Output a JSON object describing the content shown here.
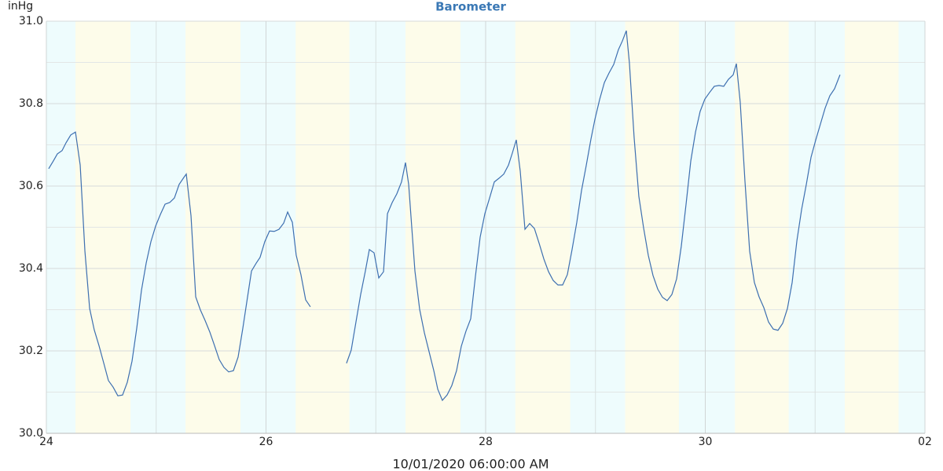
{
  "chart_data": {
    "type": "line",
    "title": "Barometer",
    "ylabel": "inHg",
    "xlabel": "10/01/2020 06:00:00 AM",
    "xlim": [
      24,
      32
    ],
    "xticks": [
      24,
      26,
      28,
      30,
      {
        "value": 32,
        "label": "02"
      }
    ],
    "x_minor_grid": [
      25,
      27,
      29,
      31
    ],
    "ylim": [
      30,
      31
    ],
    "yticks": [
      {
        "value": 30,
        "label": "30.0"
      },
      30.2,
      30.4,
      30.6,
      30.8,
      {
        "value": 31,
        "label": "31.0"
      }
    ],
    "y_minor_grid": [
      30.1,
      30.3,
      30.5,
      30.7,
      30.9
    ],
    "grid": true,
    "background": "#eefcfd",
    "band_color": "#fdfcea",
    "bands": [
      [
        24.265,
        24.766
      ],
      [
        25.267,
        25.767
      ],
      [
        26.27,
        26.76
      ],
      [
        27.27,
        27.77
      ],
      [
        28.27,
        28.77
      ],
      [
        29.27,
        29.76
      ],
      [
        30.27,
        30.76
      ],
      [
        31.27,
        31.76
      ]
    ],
    "x": [
      24.021,
      24.064,
      24.1,
      24.143,
      24.179,
      24.222,
      24.265,
      24.308,
      24.351,
      24.394,
      24.436,
      24.479,
      24.522,
      24.565,
      24.608,
      24.651,
      24.694,
      24.737,
      24.78,
      24.823,
      24.866,
      24.909,
      24.952,
      24.995,
      25.038,
      25.081,
      25.123,
      25.166,
      25.209,
      25.252,
      25.274,
      25.317,
      25.36,
      25.403,
      25.445,
      25.488,
      25.531,
      25.574,
      25.617,
      25.66,
      25.703,
      25.746,
      25.789,
      25.832,
      25.868,
      25.911,
      25.946,
      25.989,
      26.032,
      26.075,
      26.118,
      26.161,
      26.197,
      26.24,
      26.275,
      26.318,
      26.361,
      26.404,
      26.58,
      26.733,
      26.776,
      26.819,
      26.862,
      26.905,
      26.941,
      26.984,
      27.027,
      27.07,
      27.106,
      27.149,
      27.191,
      27.234,
      27.27,
      27.299,
      27.356,
      27.399,
      27.442,
      27.485,
      27.528,
      27.564,
      27.606,
      27.649,
      27.692,
      27.735,
      27.778,
      27.821,
      27.864,
      27.907,
      27.95,
      27.993,
      28.036,
      28.079,
      28.122,
      28.165,
      28.208,
      28.243,
      28.279,
      28.315,
      28.358,
      28.401,
      28.444,
      28.487,
      28.53,
      28.573,
      28.615,
      28.658,
      28.701,
      28.744,
      28.787,
      28.83,
      28.873,
      28.916,
      28.959,
      28.995,
      29.038,
      29.081,
      29.123,
      29.166,
      29.209,
      29.245,
      29.281,
      29.309,
      29.352,
      29.395,
      29.438,
      29.481,
      29.524,
      29.567,
      29.61,
      29.653,
      29.696,
      29.739,
      29.782,
      29.825,
      29.868,
      29.911,
      29.953,
      29.996,
      30.039,
      30.082,
      30.125,
      30.168,
      30.211,
      30.254,
      30.283,
      30.318,
      30.361,
      30.404,
      30.447,
      30.49,
      30.533,
      30.576,
      30.619,
      30.662,
      30.705,
      30.748,
      30.791,
      30.834,
      30.877,
      30.92,
      30.963,
      31.006,
      31.048,
      31.091,
      31.134,
      31.177,
      31.227
    ],
    "series": [
      {
        "color": "#3d6fb0",
        "values": [
          30.642,
          30.661,
          30.678,
          30.686,
          30.705,
          30.724,
          30.731,
          30.651,
          30.442,
          30.303,
          30.251,
          30.213,
          30.171,
          30.128,
          30.112,
          30.091,
          30.093,
          30.124,
          30.175,
          30.255,
          30.347,
          30.413,
          30.465,
          30.503,
          30.531,
          30.556,
          30.56,
          30.571,
          30.604,
          30.621,
          30.629,
          30.528,
          30.331,
          30.299,
          30.274,
          30.246,
          30.213,
          30.179,
          30.16,
          30.149,
          30.152,
          30.185,
          30.255,
          30.331,
          30.394,
          30.413,
          30.427,
          30.465,
          30.491,
          30.49,
          30.495,
          30.51,
          30.537,
          30.512,
          30.432,
          30.385,
          30.324,
          30.307,
          null,
          30.17,
          30.202,
          30.27,
          30.337,
          30.394,
          30.446,
          30.438,
          30.377,
          30.392,
          30.533,
          30.56,
          30.581,
          30.61,
          30.657,
          30.604,
          30.394,
          30.301,
          30.244,
          30.198,
          30.152,
          30.107,
          30.08,
          30.093,
          30.116,
          30.152,
          30.211,
          30.248,
          30.278,
          30.381,
          30.476,
          30.533,
          30.571,
          30.61,
          30.619,
          30.629,
          30.651,
          30.68,
          30.712,
          30.636,
          30.495,
          30.509,
          30.497,
          30.461,
          30.423,
          30.392,
          30.371,
          30.36,
          30.36,
          30.385,
          30.446,
          30.512,
          30.589,
          30.65,
          30.714,
          30.762,
          30.81,
          30.851,
          30.874,
          30.895,
          30.931,
          30.952,
          30.977,
          30.899,
          30.718,
          30.575,
          30.499,
          30.432,
          30.383,
          30.35,
          30.33,
          30.322,
          30.337,
          30.375,
          30.455,
          30.556,
          30.661,
          30.731,
          30.781,
          30.811,
          30.827,
          30.842,
          30.844,
          30.842,
          30.859,
          30.87,
          30.897,
          30.804,
          30.613,
          30.442,
          30.366,
          30.331,
          30.305,
          30.27,
          30.253,
          30.25,
          30.267,
          30.303,
          30.366,
          30.467,
          30.543,
          30.604,
          30.67,
          30.712,
          30.75,
          30.789,
          30.819,
          30.836,
          30.87
        ]
      }
    ]
  }
}
